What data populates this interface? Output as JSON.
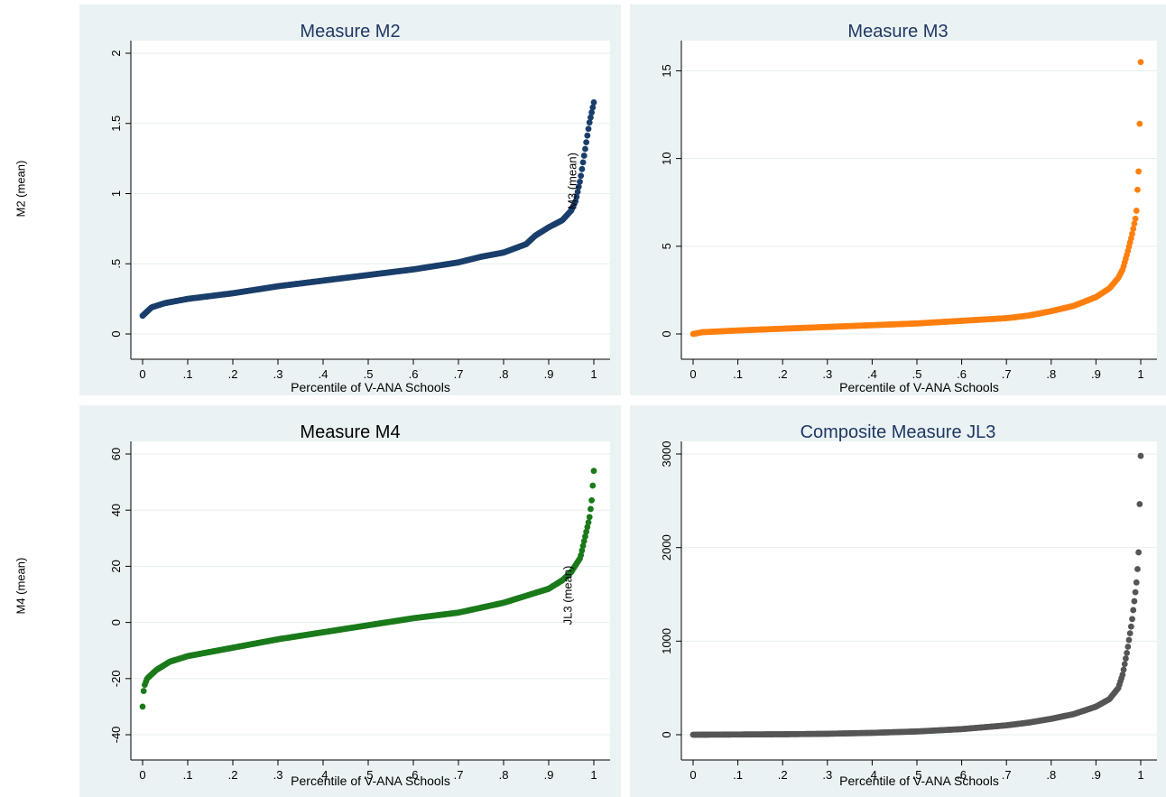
{
  "chart_data": [
    {
      "type": "scatter",
      "title": "Measure M2",
      "title_color": "#1f3864",
      "marker_color": "#1a3e6b",
      "xlabel": "Percentile of V-ANA Schools",
      "ylabel": "M2 (mean)",
      "xlim": [
        0,
        1
      ],
      "ylim": [
        0,
        2
      ],
      "x_ticks": [
        "0",
        ".1",
        ".2",
        ".3",
        ".4",
        ".5",
        ".6",
        ".7",
        ".8",
        ".9",
        "1"
      ],
      "y_ticks": [
        "0",
        ".5",
        "1",
        "1.5",
        "2"
      ],
      "grid": true,
      "curve": [
        [
          0,
          0.13
        ],
        [
          0.01,
          0.16
        ],
        [
          0.02,
          0.19
        ],
        [
          0.05,
          0.22
        ],
        [
          0.1,
          0.25
        ],
        [
          0.2,
          0.29
        ],
        [
          0.3,
          0.34
        ],
        [
          0.4,
          0.38
        ],
        [
          0.5,
          0.42
        ],
        [
          0.6,
          0.46
        ],
        [
          0.7,
          0.51
        ],
        [
          0.75,
          0.55
        ],
        [
          0.8,
          0.58
        ],
        [
          0.85,
          0.64
        ],
        [
          0.87,
          0.7
        ],
        [
          0.9,
          0.76
        ],
        [
          0.93,
          0.81
        ],
        [
          0.95,
          0.88
        ],
        [
          0.96,
          0.95
        ],
        [
          0.97,
          1.1
        ],
        [
          0.98,
          1.3
        ],
        [
          0.99,
          1.5
        ],
        [
          1.0,
          1.65
        ]
      ]
    },
    {
      "type": "scatter",
      "title": "Measure M3",
      "title_color": "#1f3864",
      "marker_color": "#ff7f0e",
      "xlabel": "Percentile of V-ANA Schools",
      "ylabel": "M3 (mean)",
      "xlim": [
        0,
        1
      ],
      "ylim": [
        0,
        16
      ],
      "y_tick_values": [
        0,
        5,
        10,
        15
      ],
      "x_ticks": [
        "0",
        ".1",
        ".2",
        ".3",
        ".4",
        ".5",
        ".6",
        ".7",
        ".8",
        ".9",
        "1"
      ],
      "y_ticks": [
        "0",
        "5",
        "10",
        "15"
      ],
      "grid": true,
      "curve": [
        [
          0,
          0.0
        ],
        [
          0.02,
          0.1
        ],
        [
          0.1,
          0.2
        ],
        [
          0.2,
          0.3
        ],
        [
          0.3,
          0.4
        ],
        [
          0.4,
          0.5
        ],
        [
          0.5,
          0.6
        ],
        [
          0.6,
          0.75
        ],
        [
          0.7,
          0.9
        ],
        [
          0.75,
          1.05
        ],
        [
          0.8,
          1.3
        ],
        [
          0.85,
          1.6
        ],
        [
          0.9,
          2.1
        ],
        [
          0.93,
          2.6
        ],
        [
          0.95,
          3.2
        ],
        [
          0.96,
          3.7
        ],
        [
          0.97,
          4.6
        ],
        [
          0.98,
          5.6
        ],
        [
          0.99,
          6.8
        ],
        [
          0.993,
          8.3
        ],
        [
          0.996,
          9.6
        ],
        [
          1.0,
          15.5
        ]
      ]
    },
    {
      "type": "scatter",
      "title": "Measure M4",
      "title_color": "#000000",
      "marker_color": "#1a7a1a",
      "xlabel": "Percentile of V-ANA Schools",
      "ylabel": "M4 (mean)",
      "xlim": [
        0,
        1
      ],
      "ylim": [
        -40,
        60
      ],
      "y_tick_values": [
        -40,
        -20,
        0,
        20,
        40,
        60
      ],
      "x_ticks": [
        "0",
        ".1",
        ".2",
        ".3",
        ".4",
        ".5",
        ".6",
        ".7",
        ".8",
        ".9",
        "1"
      ],
      "y_ticks": [
        "-40",
        "-20",
        "0",
        "20",
        "40",
        "60"
      ],
      "grid": true,
      "curve": [
        [
          0,
          -30
        ],
        [
          0.003,
          -23
        ],
        [
          0.01,
          -20
        ],
        [
          0.03,
          -17
        ],
        [
          0.06,
          -14
        ],
        [
          0.1,
          -12
        ],
        [
          0.2,
          -9
        ],
        [
          0.3,
          -6
        ],
        [
          0.4,
          -3.5
        ],
        [
          0.5,
          -1
        ],
        [
          0.6,
          1.5
        ],
        [
          0.7,
          3.5
        ],
        [
          0.8,
          7
        ],
        [
          0.85,
          9.5
        ],
        [
          0.9,
          12
        ],
        [
          0.93,
          15
        ],
        [
          0.95,
          18
        ],
        [
          0.97,
          23
        ],
        [
          0.98,
          30
        ],
        [
          0.99,
          37
        ],
        [
          0.995,
          43
        ],
        [
          1.0,
          54
        ]
      ]
    },
    {
      "type": "scatter",
      "title": "Composite Measure JL3",
      "title_color": "#1f3864",
      "marker_color": "#555555",
      "xlabel": "Percentile of V-ANA Schools",
      "ylabel": "JL3 (mean)",
      "xlim": [
        0,
        1
      ],
      "ylim": [
        0,
        3000
      ],
      "y_tick_values": [
        0,
        1000,
        2000,
        3000
      ],
      "x_ticks": [
        "0",
        ".1",
        ".2",
        ".3",
        ".4",
        ".5",
        ".6",
        ".7",
        ".8",
        ".9",
        "1"
      ],
      "y_ticks": [
        "0",
        "1000",
        "2000",
        "3000"
      ],
      "grid": true,
      "curve": [
        [
          0,
          0
        ],
        [
          0.2,
          5
        ],
        [
          0.3,
          10
        ],
        [
          0.4,
          20
        ],
        [
          0.5,
          35
        ],
        [
          0.6,
          60
        ],
        [
          0.7,
          100
        ],
        [
          0.75,
          130
        ],
        [
          0.8,
          170
        ],
        [
          0.85,
          220
        ],
        [
          0.9,
          300
        ],
        [
          0.93,
          380
        ],
        [
          0.95,
          500
        ],
        [
          0.96,
          650
        ],
        [
          0.97,
          900
        ],
        [
          0.98,
          1200
        ],
        [
          0.99,
          1600
        ],
        [
          0.995,
          1900
        ],
        [
          1.0,
          2980
        ]
      ]
    }
  ]
}
